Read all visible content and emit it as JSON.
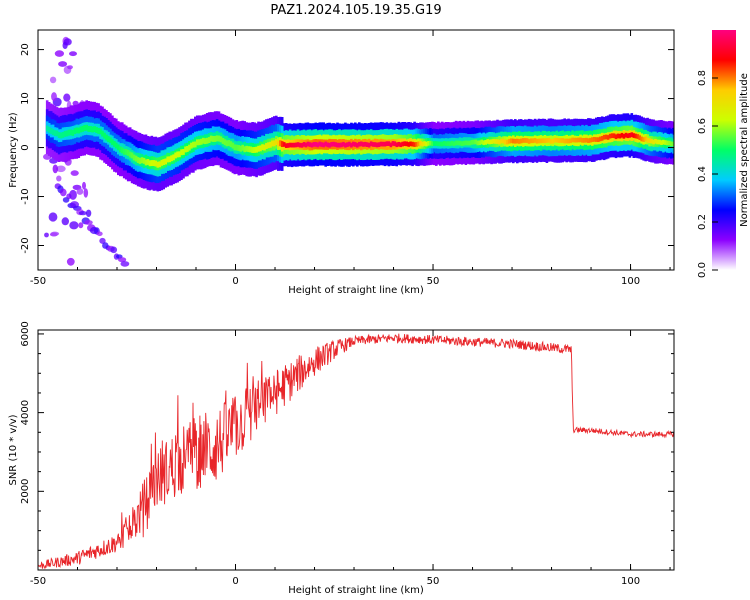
{
  "title": "PAZ1.2024.105.19.35.G19",
  "chart_data": [
    {
      "type": "heatmap",
      "xlabel": "Height of straight line (km)",
      "ylabel": "Frequency (Hz)",
      "xlim": [
        -50,
        111
      ],
      "ylim": [
        -25,
        24
      ],
      "xticks": [
        -50,
        0,
        50,
        100
      ],
      "yticks": [
        -20,
        -10,
        0,
        10,
        20
      ],
      "colorbar": {
        "label": "Normalized spectral amplitude",
        "range": [
          0,
          1
        ],
        "ticks": [
          "0.0",
          "0.2",
          "0.4",
          "0.6",
          "0.8"
        ],
        "colors": [
          "#ffffff",
          "#8c00ff",
          "#0000ff",
          "#00ccff",
          "#00ff66",
          "#ccff00",
          "#ffcc00",
          "#ff0000",
          "#ff007f"
        ]
      },
      "ridge_frequency": {
        "x": [
          -48,
          -45,
          -42,
          -38,
          -35,
          -30,
          -25,
          -20,
          -15,
          -10,
          -5,
          0,
          5,
          10,
          12,
          20,
          30,
          40,
          50,
          60,
          70,
          80,
          90,
          95,
          100,
          105,
          111
        ],
        "y": [
          4,
          2.5,
          3,
          4,
          3.5,
          0,
          -2.5,
          -3.5,
          -1.5,
          1,
          2,
          0,
          -0.5,
          1,
          0.5,
          0.6,
          0.6,
          0.7,
          0.8,
          1,
          1.3,
          1.4,
          1.5,
          2.3,
          2.5,
          1.3,
          0.8
        ]
      },
      "ridge_amplitude": {
        "x": [
          -48,
          -40,
          -30,
          -20,
          -10,
          0,
          10,
          12,
          20,
          40,
          45,
          50,
          60,
          70,
          80,
          90,
          95,
          100,
          105,
          111
        ],
        "y": [
          0.45,
          0.5,
          0.5,
          0.65,
          0.6,
          0.55,
          0.7,
          0.9,
          1.0,
          0.95,
          0.85,
          0.5,
          0.55,
          0.8,
          0.75,
          0.8,
          0.85,
          0.9,
          0.7,
          0.55
        ]
      },
      "scatter_diagonal": {
        "from": [
          -45,
          -8
        ],
        "to": [
          -28,
          -24
        ]
      }
    },
    {
      "type": "line",
      "xlabel": "Height of straight line (km)",
      "ylabel": "SNR (10 * v/v)",
      "xlim": [
        -50,
        111
      ],
      "ylim": [
        0,
        6100
      ],
      "xticks": [
        -50,
        0,
        50,
        100
      ],
      "yticks": [
        2000,
        4000,
        6000
      ],
      "color": "#e8262a",
      "trend": {
        "x": [
          -50,
          -40,
          -30,
          -25,
          -20,
          -15,
          -10,
          -5,
          0,
          5,
          10,
          15,
          20,
          25,
          30,
          40,
          50,
          60,
          70,
          80,
          85,
          85.5,
          90,
          100,
          111
        ],
        "y": [
          100,
          300,
          700,
          1300,
          2300,
          2700,
          3000,
          3150,
          3600,
          4100,
          4500,
          4900,
          5300,
          5600,
          5820,
          5900,
          5850,
          5800,
          5750,
          5650,
          5600,
          3560,
          3550,
          3450,
          3450
        ]
      },
      "noise_amplitude": {
        "x": [
          -50,
          -30,
          -22,
          -15,
          -5,
          5,
          15,
          25,
          30,
          85,
          85.5,
          111
        ],
        "y": [
          100,
          250,
          700,
          900,
          1000,
          700,
          500,
          250,
          120,
          120,
          70,
          70
        ]
      }
    }
  ]
}
